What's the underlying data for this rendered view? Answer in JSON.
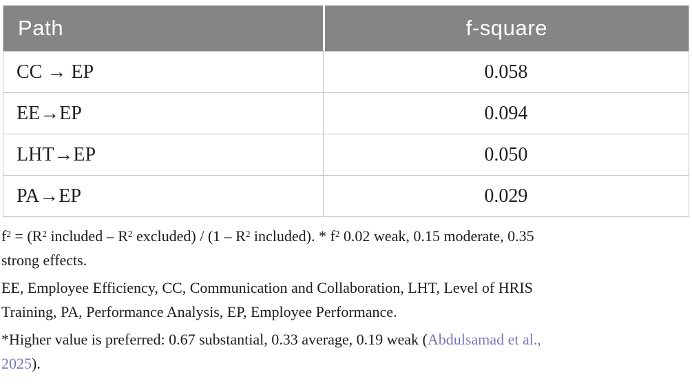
{
  "table": {
    "headers": [
      "Path",
      "f-square"
    ],
    "rows": [
      {
        "path": "CC → EP",
        "fsquare": "0.058"
      },
      {
        "path": "EE→EP",
        "fsquare": "0.094"
      },
      {
        "path": "LHT→EP",
        "fsquare": "0.050"
      },
      {
        "path": "PA→EP",
        "fsquare": "0.029"
      }
    ]
  },
  "footnotes": {
    "formula": {
      "p1": "f",
      "s1": "2",
      "p2": " = (R",
      "s2": "2",
      "p3": " included – R",
      "s3": "2",
      "p4": " excluded) / (1 – R",
      "s4": "2",
      "p5": " included). * f",
      "s5": "2",
      "p6": " 0.02 weak, 0.15 moderate, 0.35"
    },
    "formula_line2": "strong effects.",
    "abbrev_line1": "EE, Employee Efficiency, CC, Communication and Collaboration, LHT, Level of HRIS",
    "abbrev_line2": "Training, PA, Performance Analysis, EP, Employee Performance.",
    "threshold_prefix": "*Higher value is preferred: 0.67 substantial, 0.33 average, 0.19 weak (",
    "threshold_link_line1": "Abdulsamad et al.,",
    "threshold_link_line2": "2025",
    "threshold_suffix": ")."
  },
  "colors": {
    "header_bg": "#858585",
    "header_text": "#ffffff",
    "border": "#c6c6c6",
    "body_text": "#1f1f1f",
    "link": "#7577bb"
  }
}
